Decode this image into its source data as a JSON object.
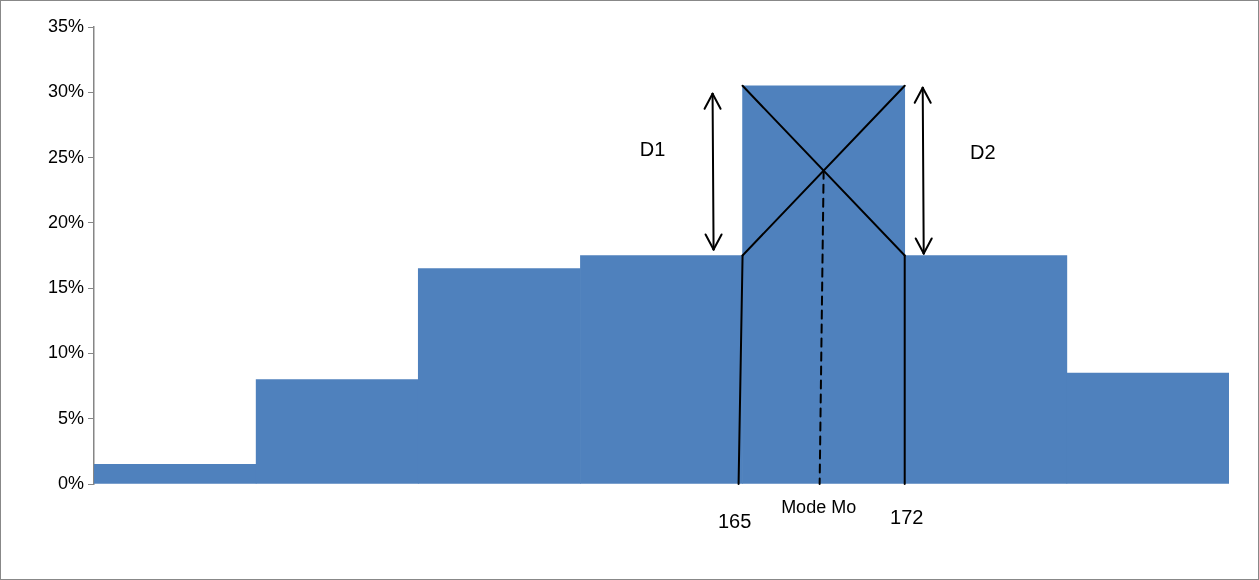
{
  "chart_data": {
    "type": "bar",
    "categories": [
      null,
      null,
      null,
      null,
      null,
      null,
      null
    ],
    "values": [
      1.5,
      8,
      16.5,
      17.5,
      30.5,
      17.5,
      8.5
    ],
    "color": "#4f81bd",
    "ylim": [
      0,
      35
    ],
    "yticks": [
      {
        "value": 0,
        "label": "0%"
      },
      {
        "value": 5,
        "label": "5%"
      },
      {
        "value": 10,
        "label": "10%"
      },
      {
        "value": 15,
        "label": "15%"
      },
      {
        "value": 20,
        "label": "20%"
      },
      {
        "value": 25,
        "label": "25%"
      },
      {
        "value": 30,
        "label": "30%"
      },
      {
        "value": 35,
        "label": "35%"
      }
    ],
    "grid": false,
    "legend": false,
    "annotations": [
      "D1",
      "D2",
      "165",
      "Mode Mo",
      "172"
    ]
  }
}
